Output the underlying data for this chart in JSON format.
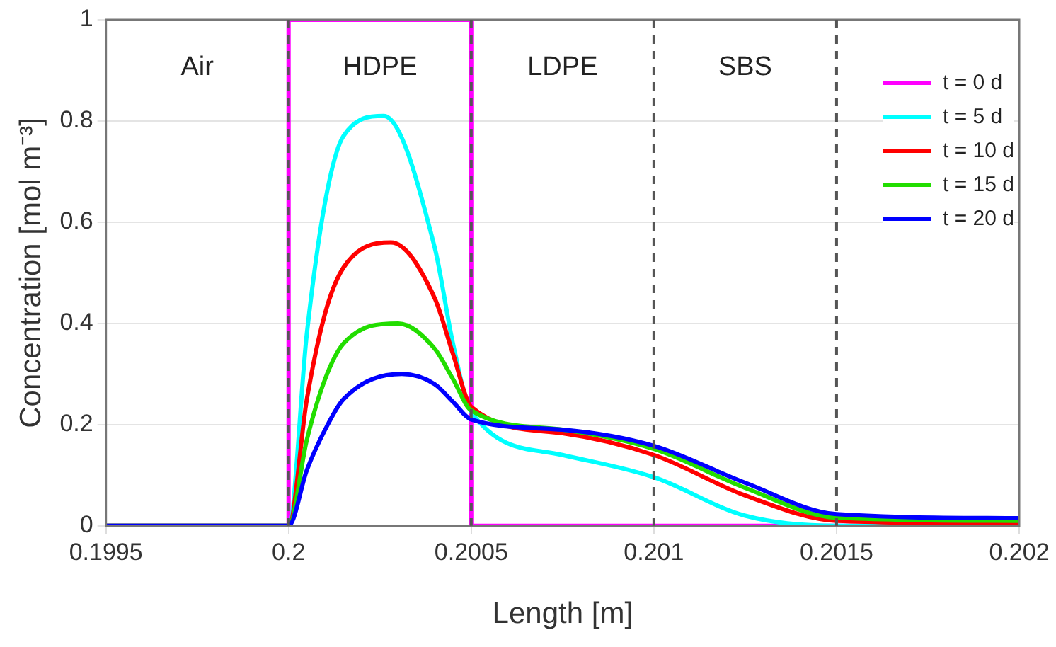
{
  "chart_data": {
    "type": "line",
    "xlabel": "Length [m]",
    "ylabel": "Concentration [mol m⁻³]",
    "xlim": [
      0.1995,
      0.202
    ],
    "xticks": [
      0.1995,
      0.2,
      0.2005,
      0.201,
      0.2015,
      0.202
    ],
    "ylim": [
      0,
      1
    ],
    "yticks": [
      0,
      0.2,
      0.4,
      0.6,
      0.8,
      1
    ],
    "grid": "y",
    "legend": "top right",
    "line_style": "solid",
    "marker": "none",
    "series": [
      {
        "name": "t = 0 d",
        "color": "#ff00ff",
        "x": [
          0.1995,
          0.2,
          0.2,
          0.2005,
          0.2005,
          0.202
        ],
        "values": [
          0,
          0,
          1,
          1,
          0,
          0
        ]
      },
      {
        "name": "t = 5 d",
        "color": "#00ffff",
        "x": [
          0.1995,
          0.2,
          0.20005,
          0.2001,
          0.20015,
          0.20026,
          0.2004,
          0.20045,
          0.2005,
          0.20075,
          0.201,
          0.20125,
          0.2015,
          0.202
        ],
        "values": [
          0,
          0,
          0.38,
          0.64,
          0.77,
          0.81,
          0.55,
          0.36,
          0.225,
          0.14,
          0.096,
          0.02,
          0,
          0
        ]
      },
      {
        "name": "t = 10 d",
        "color": "#ff0000",
        "x": [
          0.1995,
          0.2,
          0.20005,
          0.2001,
          0.20015,
          0.20028,
          0.2004,
          0.20045,
          0.2005,
          0.20075,
          0.201,
          0.20125,
          0.2015,
          0.202
        ],
        "values": [
          0,
          0,
          0.25,
          0.42,
          0.51,
          0.56,
          0.45,
          0.34,
          0.235,
          0.183,
          0.14,
          0.06,
          0.01,
          0.005
        ]
      },
      {
        "name": "t = 15 d",
        "color": "#22dd00",
        "x": [
          0.1995,
          0.2,
          0.20005,
          0.2001,
          0.20015,
          0.2003,
          0.2004,
          0.20045,
          0.2005,
          0.20075,
          0.201,
          0.20125,
          0.2015,
          0.202
        ],
        "values": [
          0,
          0,
          0.17,
          0.29,
          0.36,
          0.4,
          0.35,
          0.29,
          0.228,
          0.19,
          0.152,
          0.075,
          0.016,
          0.01
        ]
      },
      {
        "name": "t = 20 d",
        "color": "#0000ff",
        "x": [
          0.1995,
          0.2,
          0.20005,
          0.2001,
          0.20015,
          0.20031,
          0.2004,
          0.20045,
          0.2005,
          0.20075,
          0.201,
          0.20125,
          0.2015,
          0.202
        ],
        "values": [
          0,
          0,
          0.11,
          0.19,
          0.25,
          0.3,
          0.28,
          0.245,
          0.21,
          0.19,
          0.158,
          0.085,
          0.023,
          0.015
        ]
      }
    ],
    "ref_lines": [
      {
        "axis": "x",
        "value": 0.2,
        "color": "#555555",
        "line_style": "dashed"
      },
      {
        "axis": "x",
        "value": 0.2005,
        "color": "#555555",
        "line_style": "dashed"
      },
      {
        "axis": "x",
        "value": 0.201,
        "color": "#555555",
        "line_style": "dashed"
      },
      {
        "axis": "x",
        "value": 0.2015,
        "color": "#555555",
        "line_style": "dashed"
      }
    ],
    "annotations": [
      "Air",
      "HDPE",
      "LDPE",
      "SBS"
    ]
  }
}
